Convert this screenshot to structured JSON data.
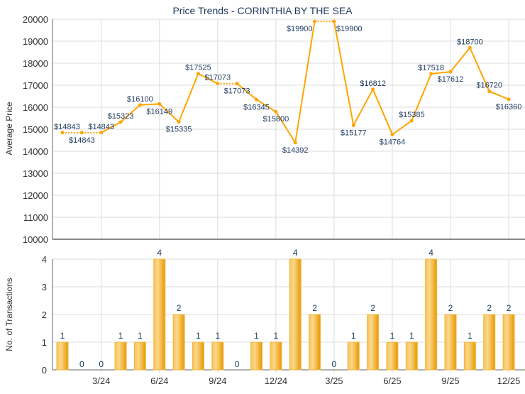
{
  "chart_data": [
    {
      "type": "line",
      "title": "Price Trends - CORINTHIA BY THE SEA",
      "ylabel": "Average Price",
      "ylim": [
        10000,
        20000
      ],
      "yticks": [
        10000,
        11000,
        12000,
        13000,
        14000,
        15000,
        16000,
        17000,
        18000,
        19000,
        20000
      ],
      "grid": true,
      "color": "#ffa500",
      "values": [
        14843,
        14843,
        14843,
        15323,
        16100,
        16149,
        15335,
        17525,
        17073,
        17073,
        16345,
        15800,
        14392,
        19900,
        19900,
        15177,
        16812,
        14764,
        15385,
        17518,
        17612,
        18700,
        16720,
        16360
      ],
      "labels": [
        "$14843",
        "$14843",
        "$14843",
        "$15323",
        "$16100",
        "$16149",
        "$15335",
        "$17525",
        "$17073",
        "$17073",
        "$16345",
        "$15800",
        "$14392",
        "$19900",
        "$19900",
        "$15177",
        "$16812",
        "$14764",
        "$15385",
        "$17518",
        "$17612",
        "$18700",
        "$16720",
        "$16360"
      ]
    },
    {
      "type": "bar",
      "ylabel": "No. of Transactions",
      "ylim": [
        0,
        4
      ],
      "yticks": [
        0,
        1,
        2,
        3,
        4
      ],
      "grid": true,
      "color": "#f0a800",
      "values": [
        1,
        0,
        0,
        1,
        1,
        4,
        2,
        1,
        1,
        0,
        1,
        1,
        4,
        2,
        0,
        1,
        2,
        1,
        1,
        4,
        2,
        1,
        2,
        2
      ],
      "xtick_labels": [
        {
          "index": 2,
          "label": "3/24"
        },
        {
          "index": 5,
          "label": "6/24"
        },
        {
          "index": 8,
          "label": "9/24"
        },
        {
          "index": 11,
          "label": "12/24"
        },
        {
          "index": 14,
          "label": "3/25"
        },
        {
          "index": 17,
          "label": "6/25"
        },
        {
          "index": 20,
          "label": "9/25"
        },
        {
          "index": 23,
          "label": "12/25"
        }
      ]
    }
  ]
}
